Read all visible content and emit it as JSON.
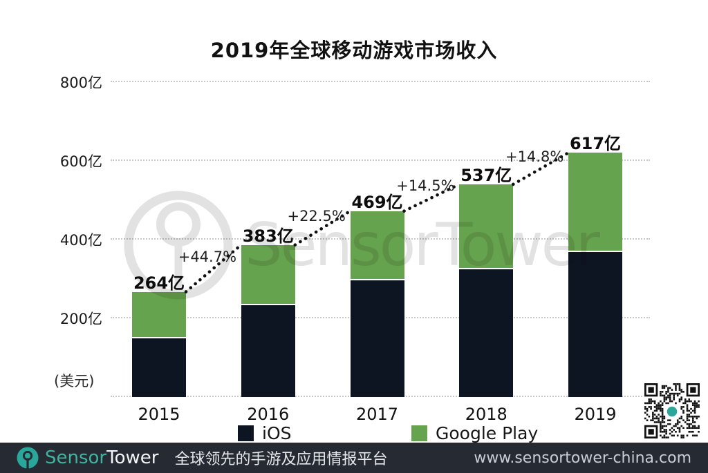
{
  "title": "2019年全球移动游戏市场收入",
  "watermark": {
    "text": "SensorTower",
    "icon": "sensortower-ring-logo",
    "color": "#e2e2e2"
  },
  "chart_data": {
    "type": "bar",
    "subtype": "stacked",
    "title": "2019年全球移动游戏市场收入",
    "unit_label": "(美元)",
    "categories": [
      "2015",
      "2016",
      "2017",
      "2018",
      "2019"
    ],
    "series": [
      {
        "name": "iOS",
        "color": "#0d1422",
        "values": [
          149,
          233,
          296,
          325,
          369
        ]
      },
      {
        "name": "Google Play",
        "color": "#66a34e",
        "values": [
          115,
          150,
          173,
          212,
          248
        ]
      }
    ],
    "totals": [
      264,
      383,
      469,
      537,
      617
    ],
    "total_labels": [
      "264亿",
      "383亿",
      "469亿",
      "537亿",
      "617亿"
    ],
    "growth_labels": [
      "+44.7%",
      "+22.5%",
      "+14.5%",
      "+14.8%"
    ],
    "y_ticks": [
      {
        "value": 800,
        "label": "800亿"
      },
      {
        "value": 600,
        "label": "600亿"
      },
      {
        "value": 400,
        "label": "400亿"
      },
      {
        "value": 200,
        "label": "200亿"
      }
    ],
    "ylim": [
      0,
      800
    ],
    "grid": "dotted-horizontal",
    "legend_position": "bottom",
    "annotations": "dotted trend line connecting bar tops with YoY growth percentages"
  },
  "legend": {
    "items": [
      {
        "label": "iOS",
        "color": "#0d1422"
      },
      {
        "label": "Google Play",
        "color": "#66a34e"
      }
    ]
  },
  "qr": {
    "icon": "qr-code",
    "center_dot_color": "#2aa79a"
  },
  "footer": {
    "brand_sensor": "Sensor",
    "brand_tower": "Tower",
    "tagline": "全球领先的手游及应用情报平台",
    "website": "www.sensortower-china.com",
    "background": "#262b33",
    "teal": "#2aa79a"
  }
}
